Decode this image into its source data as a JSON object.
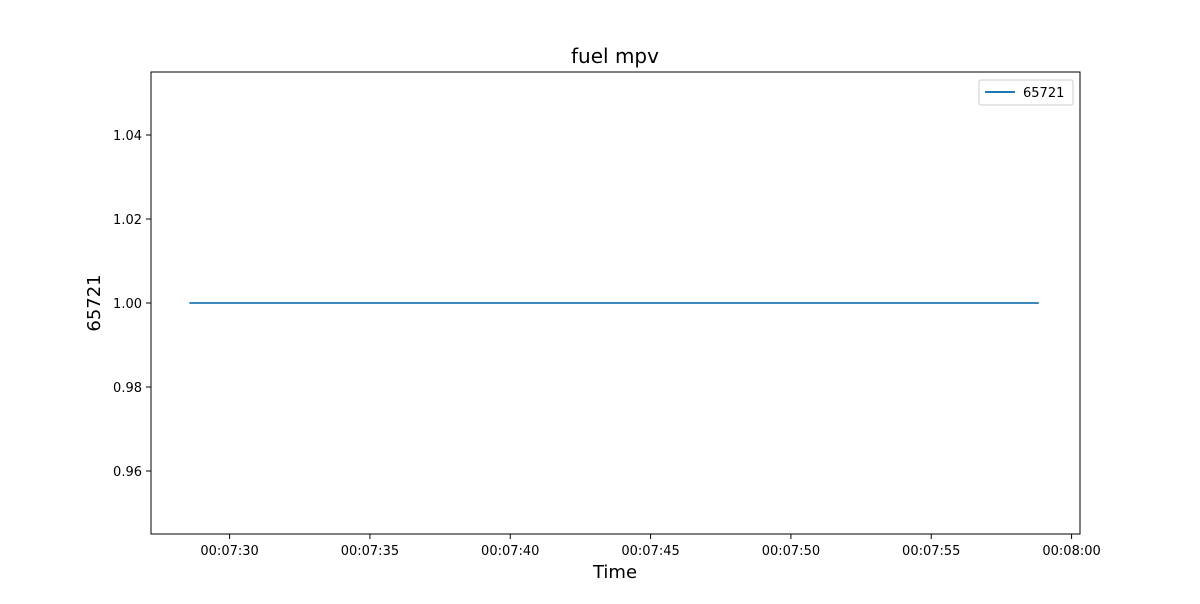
{
  "chart_data": {
    "type": "line",
    "title": "fuel mpv",
    "xlabel": "Time",
    "ylabel": "65721",
    "x_axis_kind": "time",
    "xlim": [
      "00:07:27.2",
      "00:08:00.3"
    ],
    "ylim": [
      0.945,
      1.055
    ],
    "x_ticks": [
      "00:07:30",
      "00:07:35",
      "00:07:40",
      "00:07:45",
      "00:07:50",
      "00:07:55",
      "00:08:00"
    ],
    "y_ticks": [
      "0.96",
      "0.98",
      "1.00",
      "1.02",
      "1.04"
    ],
    "grid": false,
    "legend_position": "top-right",
    "series": [
      {
        "name": "65721",
        "color": "#1f77b4",
        "x": [
          "00:07:28.6",
          "00:07:58.8"
        ],
        "values": [
          1.0,
          1.0
        ]
      }
    ]
  }
}
